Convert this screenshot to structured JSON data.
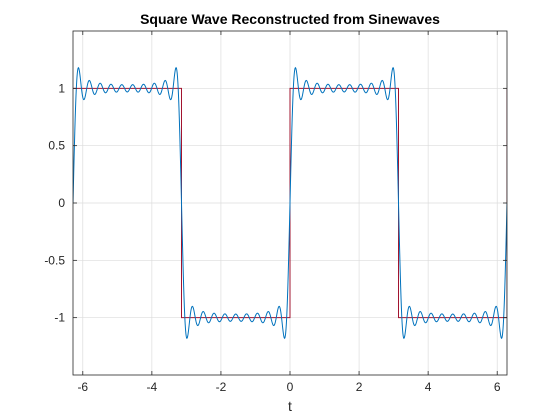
{
  "chart_data": {
    "type": "line",
    "title": "Square Wave Reconstructed from Sinewaves",
    "xlabel": "t",
    "ylabel": "",
    "xlim": [
      -6.2832,
      6.2832
    ],
    "ylim": [
      -1.5,
      1.5
    ],
    "grid": true,
    "x_ticks": [
      -6,
      -4,
      -2,
      0,
      2,
      4,
      6
    ],
    "x_tick_labels": [
      "-6",
      "-4",
      "-2",
      "0",
      "2",
      "4",
      "6"
    ],
    "y_ticks": [
      -1,
      -0.5,
      0,
      0.5,
      1
    ],
    "y_tick_labels": [
      "-1",
      "-0.5",
      "0",
      "0.5",
      "1"
    ],
    "series": [
      {
        "kind": "square-wave",
        "color": "#a2142f",
        "amplitude": 1,
        "period": 6.2832,
        "x": [
          -6.2832,
          -3.1416,
          -3.1416,
          0,
          0,
          3.1416,
          3.1416,
          6.2832,
          6.2832
        ],
        "y": [
          1,
          1,
          -1,
          -1,
          1,
          1,
          -1,
          -1,
          1
        ]
      },
      {
        "kind": "fourier-sum",
        "color": "#0072bd",
        "harmonics": [
          1,
          3,
          5,
          7,
          9,
          11,
          13,
          15,
          17,
          19
        ],
        "amplitude": 1,
        "samples": 1200
      }
    ]
  }
}
